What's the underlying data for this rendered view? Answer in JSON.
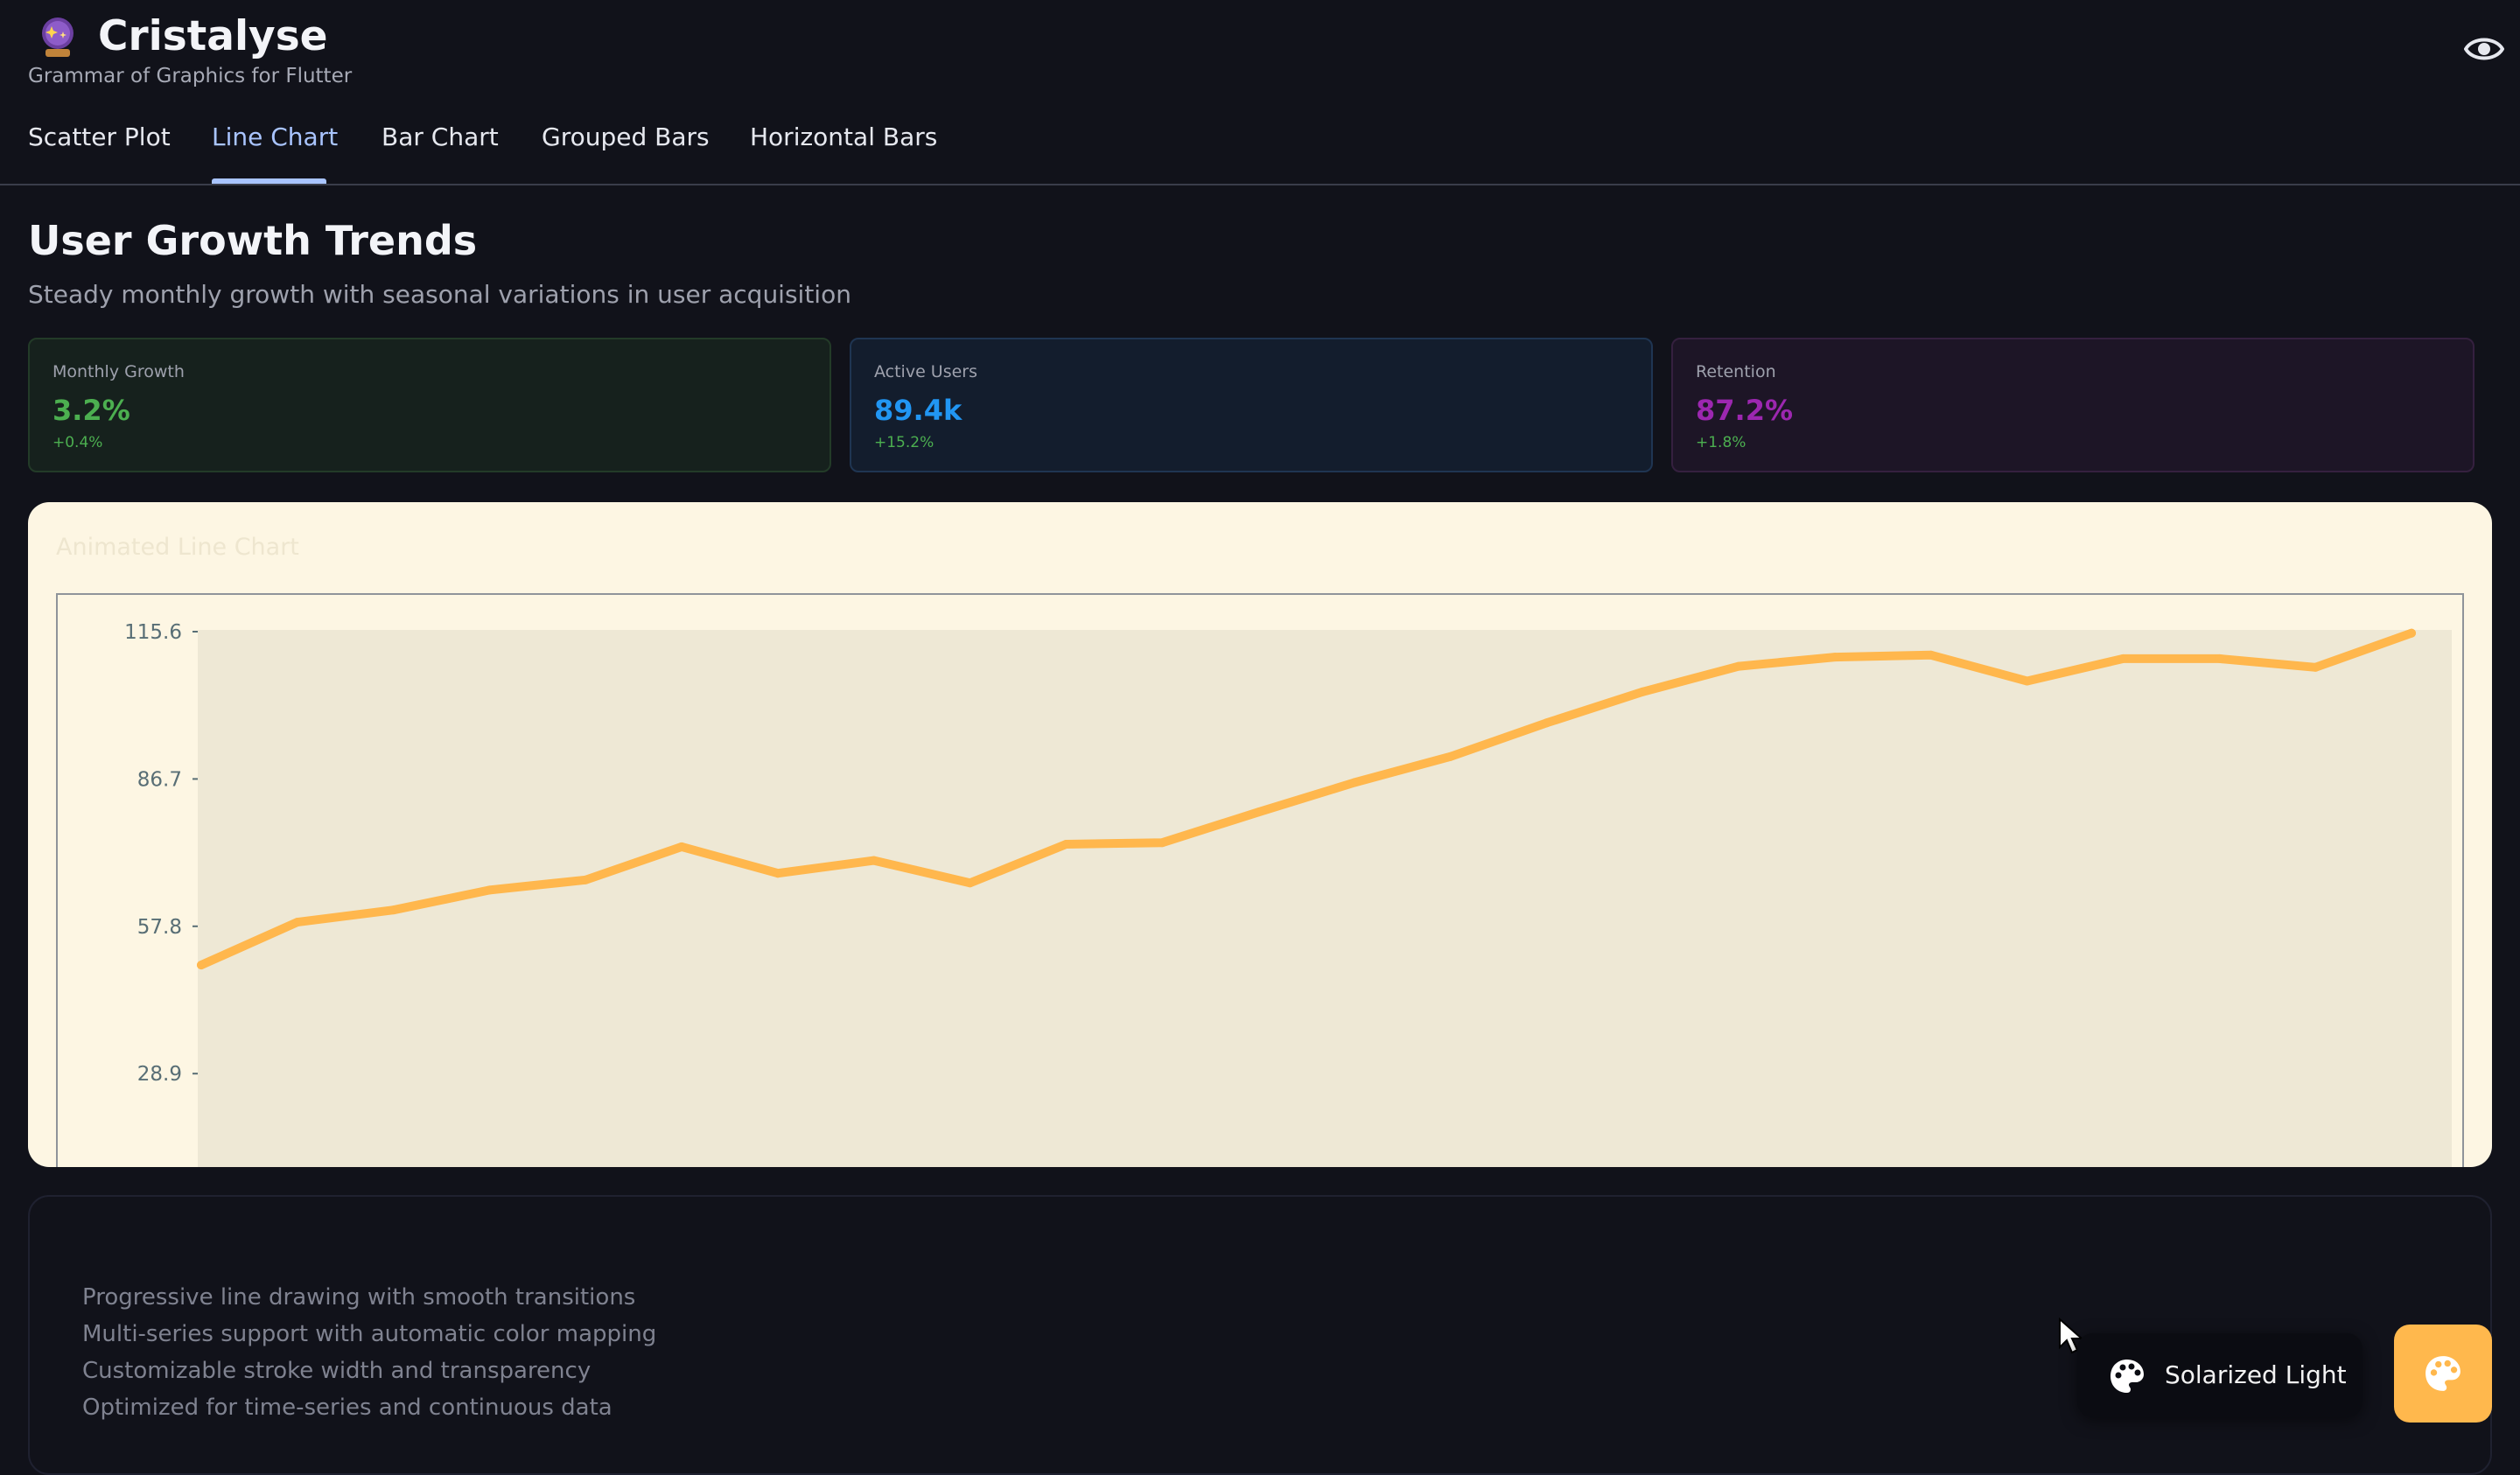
{
  "app": {
    "title": "Cristalyse",
    "subtitle": "Grammar of Graphics for Flutter",
    "logo_icon": "crystal-ball-icon",
    "visibility_icon": "eye-icon"
  },
  "tabs": [
    {
      "label": "Scatter Plot",
      "active": false
    },
    {
      "label": "Line Chart",
      "active": true
    },
    {
      "label": "Bar Chart",
      "active": false
    },
    {
      "label": "Grouped Bars",
      "active": false
    },
    {
      "label": "Horizontal Bars",
      "active": false
    }
  ],
  "page": {
    "title": "User Growth Trends",
    "subtitle": "Steady monthly growth with seasonal variations in user acquisition"
  },
  "metrics": [
    {
      "label": "Monthly Growth",
      "value": "3.2%",
      "delta": "+0.4%",
      "color": "#4caf50"
    },
    {
      "label": "Active Users",
      "value": "89.4k",
      "delta": "+15.2%",
      "color": "#2196f3"
    },
    {
      "label": "Retention",
      "value": "87.2%",
      "delta": "+1.8%",
      "color": "#9c27b0"
    }
  ],
  "chart_card": {
    "title": "Animated Line Chart"
  },
  "chart_data": {
    "type": "line",
    "title": "Animated Line Chart",
    "xlabel": "",
    "ylabel": "",
    "yticks": [
      "115.6",
      "86.7",
      "57.8",
      "28.9"
    ],
    "ylim": [
      0,
      115.6
    ],
    "grid": false,
    "series": [
      {
        "color": "#ffb74d",
        "values": [
          50.2,
          58.6,
          61.0,
          64.9,
          66.9,
          73.4,
          68.2,
          70.7,
          66.3,
          73.9,
          74.2,
          80.2,
          86.0,
          91.1,
          97.7,
          103.8,
          108.8,
          110.6,
          111.0,
          105.9,
          110.3,
          110.3,
          108.6,
          115.3
        ]
      }
    ]
  },
  "features": [
    "Progressive line drawing with smooth transitions",
    "Multi-series support with automatic color mapping",
    "Customizable stroke width and transparency",
    "Optimized for time-series and continuous data"
  ],
  "theme_switcher": {
    "label": "Solarized Light",
    "icon": "palette-icon",
    "button_icon": "palette-icon",
    "accent": "#ffb84d"
  }
}
